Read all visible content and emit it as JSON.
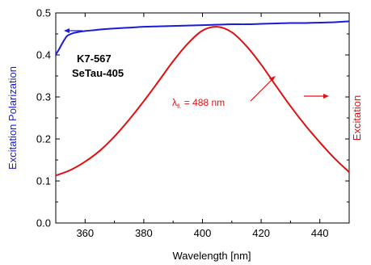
{
  "chart_data": {
    "type": "line",
    "x_label": "Wavelength [nm]",
    "y_label_left": "Excitation Polarization",
    "y_label_right": "Excitation",
    "xlim": [
      350,
      450
    ],
    "ylim": [
      0.0,
      0.5
    ],
    "x_ticks": [
      "360",
      "380",
      "400",
      "420",
      "440"
    ],
    "y_ticks": [
      "0.0",
      "0.1",
      "0.2",
      "0.3",
      "0.4",
      "0.5"
    ],
    "colors": {
      "polarization": "#1a1adb",
      "excitation": "#e01010",
      "axis": "#000000"
    },
    "annotations": {
      "sample_line1": "K7-567",
      "sample_line2": "SeTau-405",
      "lambda_symbol": "λ",
      "lambda_sub": "fl.",
      "lambda_value": " = 488 nm"
    },
    "series": [
      {
        "axis": "left",
        "color": "#1a1adb",
        "x": [
          350,
          351,
          352,
          353,
          354,
          356,
          358,
          360,
          363,
          366,
          370,
          375,
          380,
          385,
          390,
          395,
          400,
          405,
          410,
          415,
          420,
          425,
          430,
          435,
          440,
          445,
          450
        ],
        "y": [
          0.401,
          0.412,
          0.425,
          0.437,
          0.446,
          0.452,
          0.455,
          0.457,
          0.459,
          0.461,
          0.463,
          0.465,
          0.467,
          0.468,
          0.469,
          0.47,
          0.471,
          0.472,
          0.473,
          0.473,
          0.474,
          0.475,
          0.476,
          0.476,
          0.477,
          0.478,
          0.48
        ]
      },
      {
        "axis": "right",
        "color": "#e01010",
        "x": [
          350,
          355,
          360,
          365,
          370,
          375,
          380,
          385,
          390,
          395,
          400,
          405,
          410,
          415,
          420,
          425,
          430,
          435,
          440,
          445,
          450
        ],
        "y": [
          0.113,
          0.126,
          0.146,
          0.172,
          0.206,
          0.246,
          0.29,
          0.337,
          0.385,
          0.427,
          0.458,
          0.467,
          0.454,
          0.421,
          0.377,
          0.327,
          0.278,
          0.233,
          0.192,
          0.154,
          0.121
        ]
      }
    ]
  }
}
